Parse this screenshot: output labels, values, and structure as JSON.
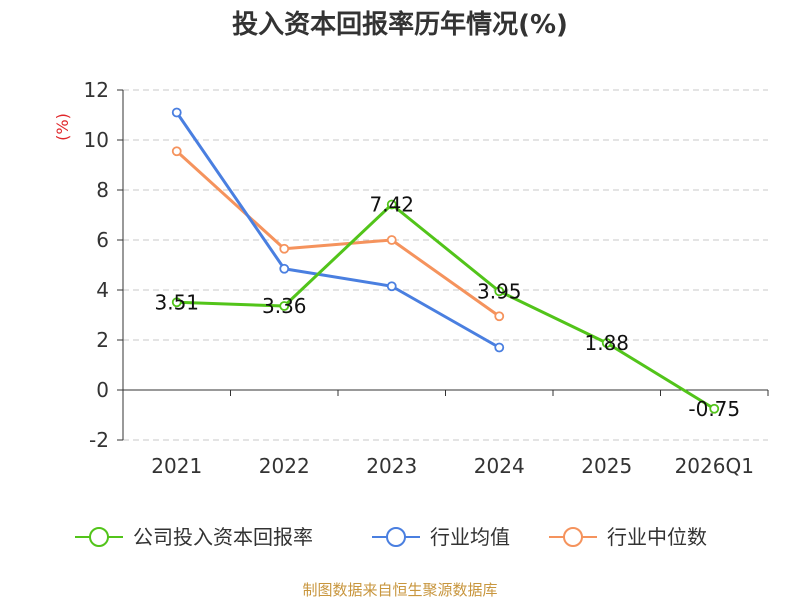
{
  "chart_data": {
    "type": "line",
    "title": "投入资本回报率历年情况(%)",
    "unit_label": "(%)",
    "categories": [
      "2021",
      "2022",
      "2023",
      "2024",
      "2025",
      "2026Q1"
    ],
    "ylim": [
      -2,
      12
    ],
    "yticks": [
      -2,
      0,
      2,
      4,
      6,
      8,
      10,
      12
    ],
    "grid": true,
    "legend_position": "bottom",
    "series": [
      {
        "name": "公司投入资本回报率",
        "color": "#52c41a",
        "values": [
          3.51,
          3.36,
          7.42,
          3.95,
          1.88,
          -0.75
        ],
        "labels": [
          "3.51",
          "3.36",
          "7.42",
          "3.95",
          "1.88",
          "-0.75"
        ]
      },
      {
        "name": "行业均值",
        "color": "#4a7fe0",
        "values": [
          11.1,
          4.85,
          4.15,
          1.7,
          null,
          null
        ]
      },
      {
        "name": "行业中位数",
        "color": "#f5935d",
        "values": [
          9.55,
          5.65,
          6.0,
          2.95,
          null,
          null
        ]
      }
    ]
  },
  "source_text": "制图数据来自恒生聚源数据库"
}
